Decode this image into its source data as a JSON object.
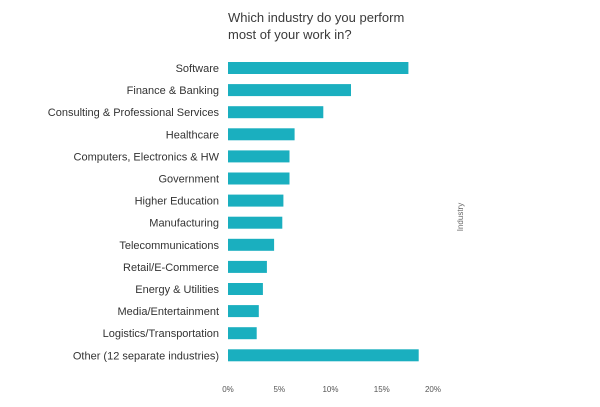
{
  "chart_data": {
    "type": "bar",
    "orientation": "horizontal",
    "title_lines": [
      "Which industry do you perform",
      "most of your work in?"
    ],
    "categories": [
      "Software",
      "Finance & Banking",
      "Consulting & Professional Services",
      "Healthcare",
      "Computers, Electronics & HW",
      "Government",
      "Higher Education",
      "Manufacturing",
      "Telecommunications",
      "Retail/E-Commerce",
      "Energy & Utilities",
      "Media/Entertainment",
      "Logistics/Transportation",
      "Other (12 separate industries)"
    ],
    "values": [
      17.6,
      12.0,
      9.3,
      6.5,
      6.0,
      6.0,
      5.4,
      5.3,
      4.5,
      3.8,
      3.4,
      3.0,
      2.8,
      18.6
    ],
    "xlim": [
      0,
      20
    ],
    "xticks": [
      0,
      5,
      10,
      15,
      20
    ],
    "tick_suffix": "%",
    "legend_label": "Industry",
    "legend_placement": "right",
    "bar_color": "#1aafbf",
    "grid": false
  }
}
